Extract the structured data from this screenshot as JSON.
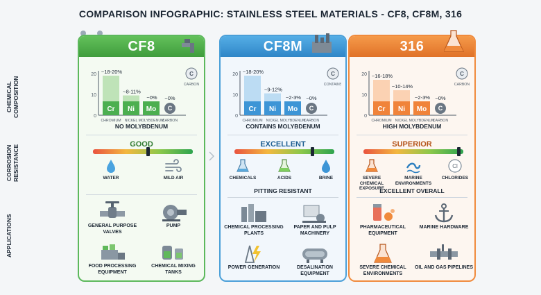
{
  "title": "COMPARISON INFOGRAPHIC: STAINLESS STEEL MATERIALS - CF8, CF8M, 316",
  "row_labels": {
    "composition": "CHEMICAL COMPOSITION",
    "corrosion": "CORROSION RESISTANCE",
    "applications": "APPLICATIONS"
  },
  "colors": {
    "cf8": "#4caf50",
    "cf8m": "#3d95d6",
    "s316": "#f0833a"
  },
  "materials": [
    {
      "name": "CF8",
      "chart_data": {
        "type": "bar",
        "categories": [
          "Cr",
          "Ni",
          "Mo",
          "C"
        ],
        "category_names": [
          "CHROMIUM",
          "NICKEL",
          "MOLYBDENUM",
          "CARBON"
        ],
        "values": [
          19,
          9.5,
          0,
          0
        ],
        "value_labels": [
          "~18-20%",
          "~8-11%",
          "~0%",
          "~0%"
        ],
        "ylim": [
          0,
          20
        ],
        "yticks": [
          "0",
          "10",
          "20"
        ]
      },
      "corner_icon_label": "CARBON",
      "composition_note": "NO MOLYBDENUM",
      "resistance": {
        "label": "GOOD",
        "level": 0.55
      },
      "conditions": [
        {
          "icon": "water-drop-icon",
          "label": "WATER"
        },
        {
          "icon": "wind-icon",
          "label": "MILD AIR"
        }
      ],
      "resistance_note": "",
      "applications": [
        {
          "icon": "valve-icon",
          "label": "GENERAL PURPOSE VALVES"
        },
        {
          "icon": "pump-icon",
          "label": "PUMP"
        },
        {
          "icon": "food-processing-icon",
          "label": "FOOD PROCESSING EQUIPMENT"
        },
        {
          "icon": "mixing-tank-icon",
          "label": "CHEMICAL MIXING TANKS"
        }
      ]
    },
    {
      "name": "CF8M",
      "chart_data": {
        "type": "bar",
        "categories": [
          "Cr",
          "Ni",
          "Mo",
          "C"
        ],
        "category_names": [
          "CHROMIUM",
          "NICKEL",
          "MOLYBDENUM",
          "CARBON"
        ],
        "values": [
          19,
          10.5,
          2.5,
          0
        ],
        "value_labels": [
          "~18-20%",
          "~9-12%",
          "~2-3%",
          "~0%"
        ],
        "ylim": [
          0,
          20
        ],
        "yticks": [
          "0",
          "10",
          "20"
        ]
      },
      "corner_icon_label": "CONTAINS",
      "composition_note": "CONTAINS MOLYBDENUM",
      "resistance": {
        "label": "EXCELLENT",
        "level": 0.78
      },
      "conditions": [
        {
          "icon": "flask-icon",
          "label": "CHEMICALS"
        },
        {
          "icon": "acid-flask-icon",
          "label": "ACIDS"
        },
        {
          "icon": "brine-drop-icon",
          "label": "BRINE"
        }
      ],
      "resistance_note": "PITTING RESISTANT",
      "applications": [
        {
          "icon": "chemical-plant-icon",
          "label": "CHEMICAL PROCESSING PLANTS"
        },
        {
          "icon": "paper-machinery-icon",
          "label": "PAPER AND PULP MACHINERY"
        },
        {
          "icon": "power-generation-icon",
          "label": "POWER GENERATION"
        },
        {
          "icon": "desalination-icon",
          "label": "DESALINATION EQUIPMENT"
        }
      ]
    },
    {
      "name": "316",
      "chart_data": {
        "type": "bar",
        "categories": [
          "Cr",
          "Ni",
          "Mo",
          "C"
        ],
        "category_names": [
          "CHROMIUM",
          "NICKEL",
          "MOLYBDENUM",
          "CARBON"
        ],
        "values": [
          17,
          12,
          2.5,
          0
        ],
        "value_labels": [
          "~16-18%",
          "~10-14%",
          "~2-3%",
          "~0%"
        ],
        "ylim": [
          0,
          20
        ],
        "yticks": [
          "0",
          "10",
          "20"
        ]
      },
      "corner_icon_label": "CARBON",
      "composition_note": "HIGH MOLYBDENUM",
      "resistance": {
        "label": "SUPERIOR",
        "level": 0.95
      },
      "conditions": [
        {
          "icon": "flask-icon",
          "label": "SEVERE CHEMICAL EXPOSURE"
        },
        {
          "icon": "wave-icon",
          "label": "MARINE ENVIRONMENTS"
        },
        {
          "icon": "chloride-icon",
          "label": "CHLORIDES"
        }
      ],
      "resistance_note": "EXCELLENT OVERALL",
      "applications": [
        {
          "icon": "pharmaceutical-icon",
          "label": "PHARMACEUTICAL EQUIPMENT"
        },
        {
          "icon": "anchor-icon",
          "label": "MARINE HARDWARE"
        },
        {
          "icon": "flask-icon",
          "label": "SEVERE CHEMICAL ENVIRONMENTS"
        },
        {
          "icon": "pipeline-icon",
          "label": "OIL AND GAS PIPELINES"
        }
      ]
    }
  ]
}
